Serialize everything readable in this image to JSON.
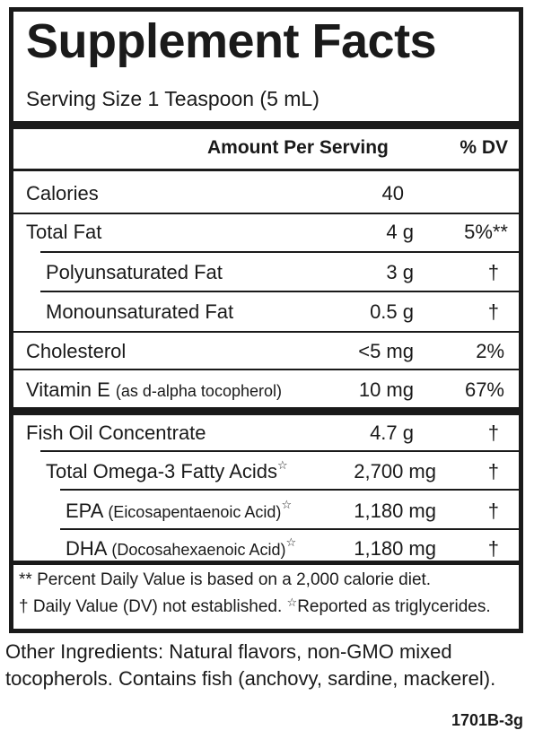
{
  "title": "Supplement Facts",
  "serving_size": "Serving Size 1 Teaspoon (5 mL)",
  "header": {
    "amount": "Amount Per Serving",
    "dv": "% DV"
  },
  "rows": [
    {
      "name": "Calories",
      "amount": "40",
      "dv": ""
    },
    {
      "name": "Total Fat",
      "amount": "4 g",
      "dv": "5%**"
    },
    {
      "name": "Polyunsaturated Fat",
      "amount": "3 g",
      "dv": "†"
    },
    {
      "name": "Monounsaturated Fat",
      "amount": "0.5 g",
      "dv": "†"
    },
    {
      "name": "Cholesterol",
      "amount": "<5 mg",
      "dv": "2%"
    },
    {
      "name": "Vitamin E",
      "name_detail": "(as d-alpha tocopherol)",
      "amount": "10 mg",
      "dv": "67%"
    },
    {
      "name": "Fish Oil Concentrate",
      "amount": "4.7 g",
      "dv": "†"
    },
    {
      "name": "Total Omega-3 Fatty Acids",
      "amount": "2,700 mg",
      "dv": "†"
    },
    {
      "name": "EPA",
      "name_detail": "(Eicosapentaenoic Acid)",
      "amount": "1,180 mg",
      "dv": "†"
    },
    {
      "name": "DHA",
      "name_detail": "(Docosahexaenoic Acid)",
      "amount": "1,180 mg",
      "dv": "†"
    }
  ],
  "star_glyph": "☆",
  "footnotes": {
    "line1": "** Percent Daily Value is based on a 2,000 calorie diet.",
    "line2a": "† Daily Value (DV) not established.",
    "line2b": "Reported as triglycerides."
  },
  "other_ingredients": "Other Ingredients: Natural flavors, non-GMO mixed tocopherols.  Contains fish (anchovy, sardine, mackerel).",
  "product_code": "1701B-3g"
}
